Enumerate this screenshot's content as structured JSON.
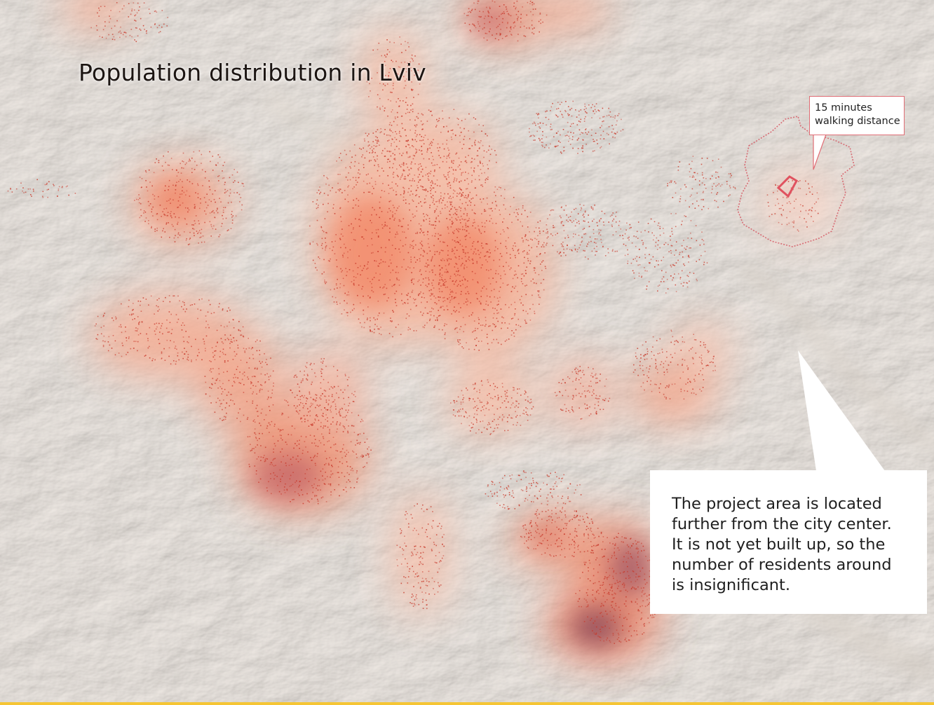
{
  "title": "Population distribution in Lviv",
  "walking_callout": {
    "lines": [
      "15 minutes",
      "walking distance"
    ]
  },
  "info_callout": {
    "lines": [
      "The project area is located",
      "further from the city center.",
      "It is not yet built up, so the",
      "number of residents around",
      "is insignificant."
    ]
  },
  "colors": {
    "background": "#efe8e1",
    "density_low": "#f7b49a",
    "density_mid": "#f07a5a",
    "density_high": "#8a4a5a",
    "building_dots": "#c8382a",
    "project_area_outline": "#e0525f",
    "isochrone_outline": "#d6606a",
    "footer_bar": "#f5c534"
  },
  "map_layers": [
    "hillshade-terrain",
    "population-density-heatmap",
    "building-dots",
    "walking-isochrone",
    "project-area"
  ]
}
